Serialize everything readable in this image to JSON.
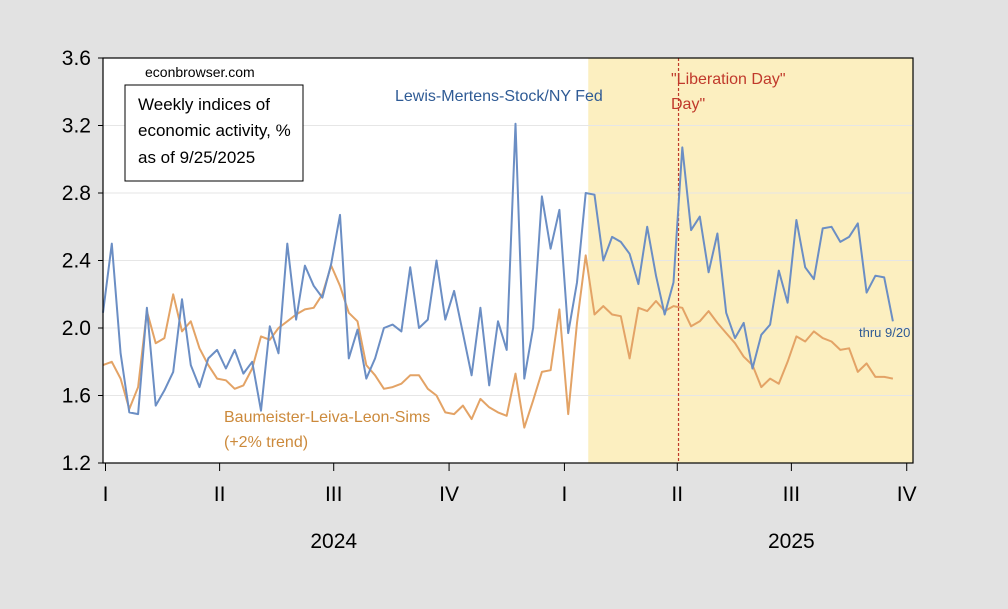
{
  "chart_data": {
    "type": "line",
    "ylim": [
      1.2,
      3.6
    ],
    "yticks": [
      "1.2",
      "1.6",
      "2.0",
      "2.4",
      "2.8",
      "3.2",
      "3.6"
    ],
    "ytick_values": [
      1.2,
      1.6,
      2.0,
      2.4,
      2.8,
      3.2,
      3.6
    ],
    "quarter_labels": [
      "I",
      "II",
      "III",
      "IV",
      "I",
      "II",
      "III",
      "IV"
    ],
    "quarter_dates": [
      "2024-01-01",
      "2024-04-01",
      "2024-07-01",
      "2024-10-01",
      "2025-01-01",
      "2025-04-01",
      "2025-07-01",
      "2025-10-01"
    ],
    "x_start": "2023-12-30",
    "x_end": "2025-10-06",
    "year_labels": [
      {
        "label": "2024",
        "center": "2024-07-01"
      },
      {
        "label": "2025",
        "center": "2025-07-01"
      }
    ],
    "grid": true,
    "shaded_region": {
      "start": "2025-01-20",
      "end": "2025-10-06",
      "color": "#fcefc0"
    },
    "vline": {
      "date": "2025-04-02",
      "color": "#c0392b",
      "label": "\"Liberation Day\""
    },
    "source_text": "econbrowser.com",
    "legend_box_lines": [
      "Weekly indices of",
      "economic activity, %",
      "as of 9/25/2025"
    ],
    "end_note": "thru 9/20",
    "series": [
      {
        "name": "Lewis-Mertens-Stock/NY Fed",
        "color": "#6b8ec4",
        "label_color": "#2f5b95",
        "start": "2023-12-30",
        "values": [
          2.09,
          2.5,
          1.85,
          1.5,
          1.49,
          2.12,
          1.54,
          1.63,
          1.74,
          2.17,
          1.78,
          1.65,
          1.82,
          1.87,
          1.76,
          1.87,
          1.73,
          1.8,
          1.51,
          2.01,
          1.85,
          2.5,
          2.05,
          2.37,
          2.25,
          2.18,
          2.38,
          2.67,
          1.82,
          1.99,
          1.7,
          1.82,
          2.0,
          2.02,
          1.98,
          2.36,
          2.0,
          2.05,
          2.4,
          2.05,
          2.22,
          1.97,
          1.72,
          2.12,
          1.66,
          2.04,
          1.87,
          3.21,
          1.7,
          2.0,
          2.78,
          2.47,
          2.7,
          1.97,
          2.27,
          2.8,
          2.79,
          2.4,
          2.54,
          2.51,
          2.44,
          2.26,
          2.6,
          2.31,
          2.08,
          2.27,
          3.07,
          2.58,
          2.66,
          2.33,
          2.56,
          2.09,
          1.94,
          2.03,
          1.76,
          1.96,
          2.02,
          2.34,
          2.15,
          2.64,
          2.36,
          2.29,
          2.59,
          2.6,
          2.51,
          2.54,
          2.62,
          2.21,
          2.31,
          2.3,
          2.04
        ]
      },
      {
        "name": "Baumeister-Leiva-Leon-Sims",
        "name_line2": "(+2% trend)",
        "color": "#e3a366",
        "label_color": "#cc8a3c",
        "start": "2023-12-30",
        "values": [
          1.78,
          1.8,
          1.7,
          1.52,
          1.65,
          2.1,
          1.91,
          1.94,
          2.2,
          1.98,
          2.04,
          1.88,
          1.78,
          1.7,
          1.69,
          1.64,
          1.66,
          1.76,
          1.95,
          1.93,
          2.0,
          2.04,
          2.08,
          2.11,
          2.12,
          2.2,
          2.37,
          2.25,
          2.09,
          2.04,
          1.78,
          1.72,
          1.64,
          1.65,
          1.67,
          1.72,
          1.72,
          1.64,
          1.6,
          1.5,
          1.49,
          1.54,
          1.46,
          1.58,
          1.53,
          1.5,
          1.48,
          1.73,
          1.41,
          1.57,
          1.74,
          1.75,
          2.11,
          1.49,
          2.03,
          2.43,
          2.08,
          2.13,
          2.08,
          2.07,
          1.82,
          2.12,
          2.1,
          2.16,
          2.1,
          2.13,
          2.12,
          2.01,
          2.04,
          2.1,
          2.03,
          1.97,
          1.91,
          1.83,
          1.78,
          1.65,
          1.7,
          1.67,
          1.8,
          1.95,
          1.92,
          1.98,
          1.94,
          1.92,
          1.87,
          1.88,
          1.74,
          1.79,
          1.71,
          1.71,
          1.7
        ]
      }
    ]
  }
}
